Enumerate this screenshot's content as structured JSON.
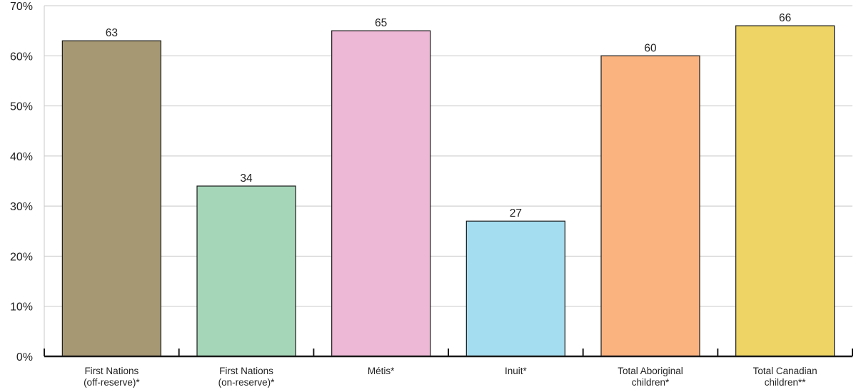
{
  "chart_data": {
    "type": "bar",
    "title": "",
    "xlabel": "",
    "ylabel": "",
    "ylim": [
      0,
      70
    ],
    "y_ticks": [
      0,
      10,
      20,
      30,
      40,
      50,
      60,
      70
    ],
    "y_tick_labels": [
      "0%",
      "10%",
      "20%",
      "30%",
      "40%",
      "50%",
      "60%",
      "70%"
    ],
    "grid": true,
    "legend": "none",
    "categories": [
      [
        "First Nations",
        "(off-reserve)*"
      ],
      [
        "First Nations",
        "(on-reserve)*"
      ],
      [
        "Métis*"
      ],
      [
        "Inuit*"
      ],
      [
        "Total Aboriginal",
        "children*"
      ],
      [
        "Total Canadian",
        "children**"
      ]
    ],
    "values": [
      63,
      34,
      65,
      27,
      60,
      66
    ],
    "data_labels": [
      "63",
      "34",
      "65",
      "27",
      "60",
      "66"
    ],
    "colors": [
      "#a69873",
      "#a4d6b7",
      "#edb8d5",
      "#a4dcf0",
      "#fab27f",
      "#edd464"
    ]
  }
}
